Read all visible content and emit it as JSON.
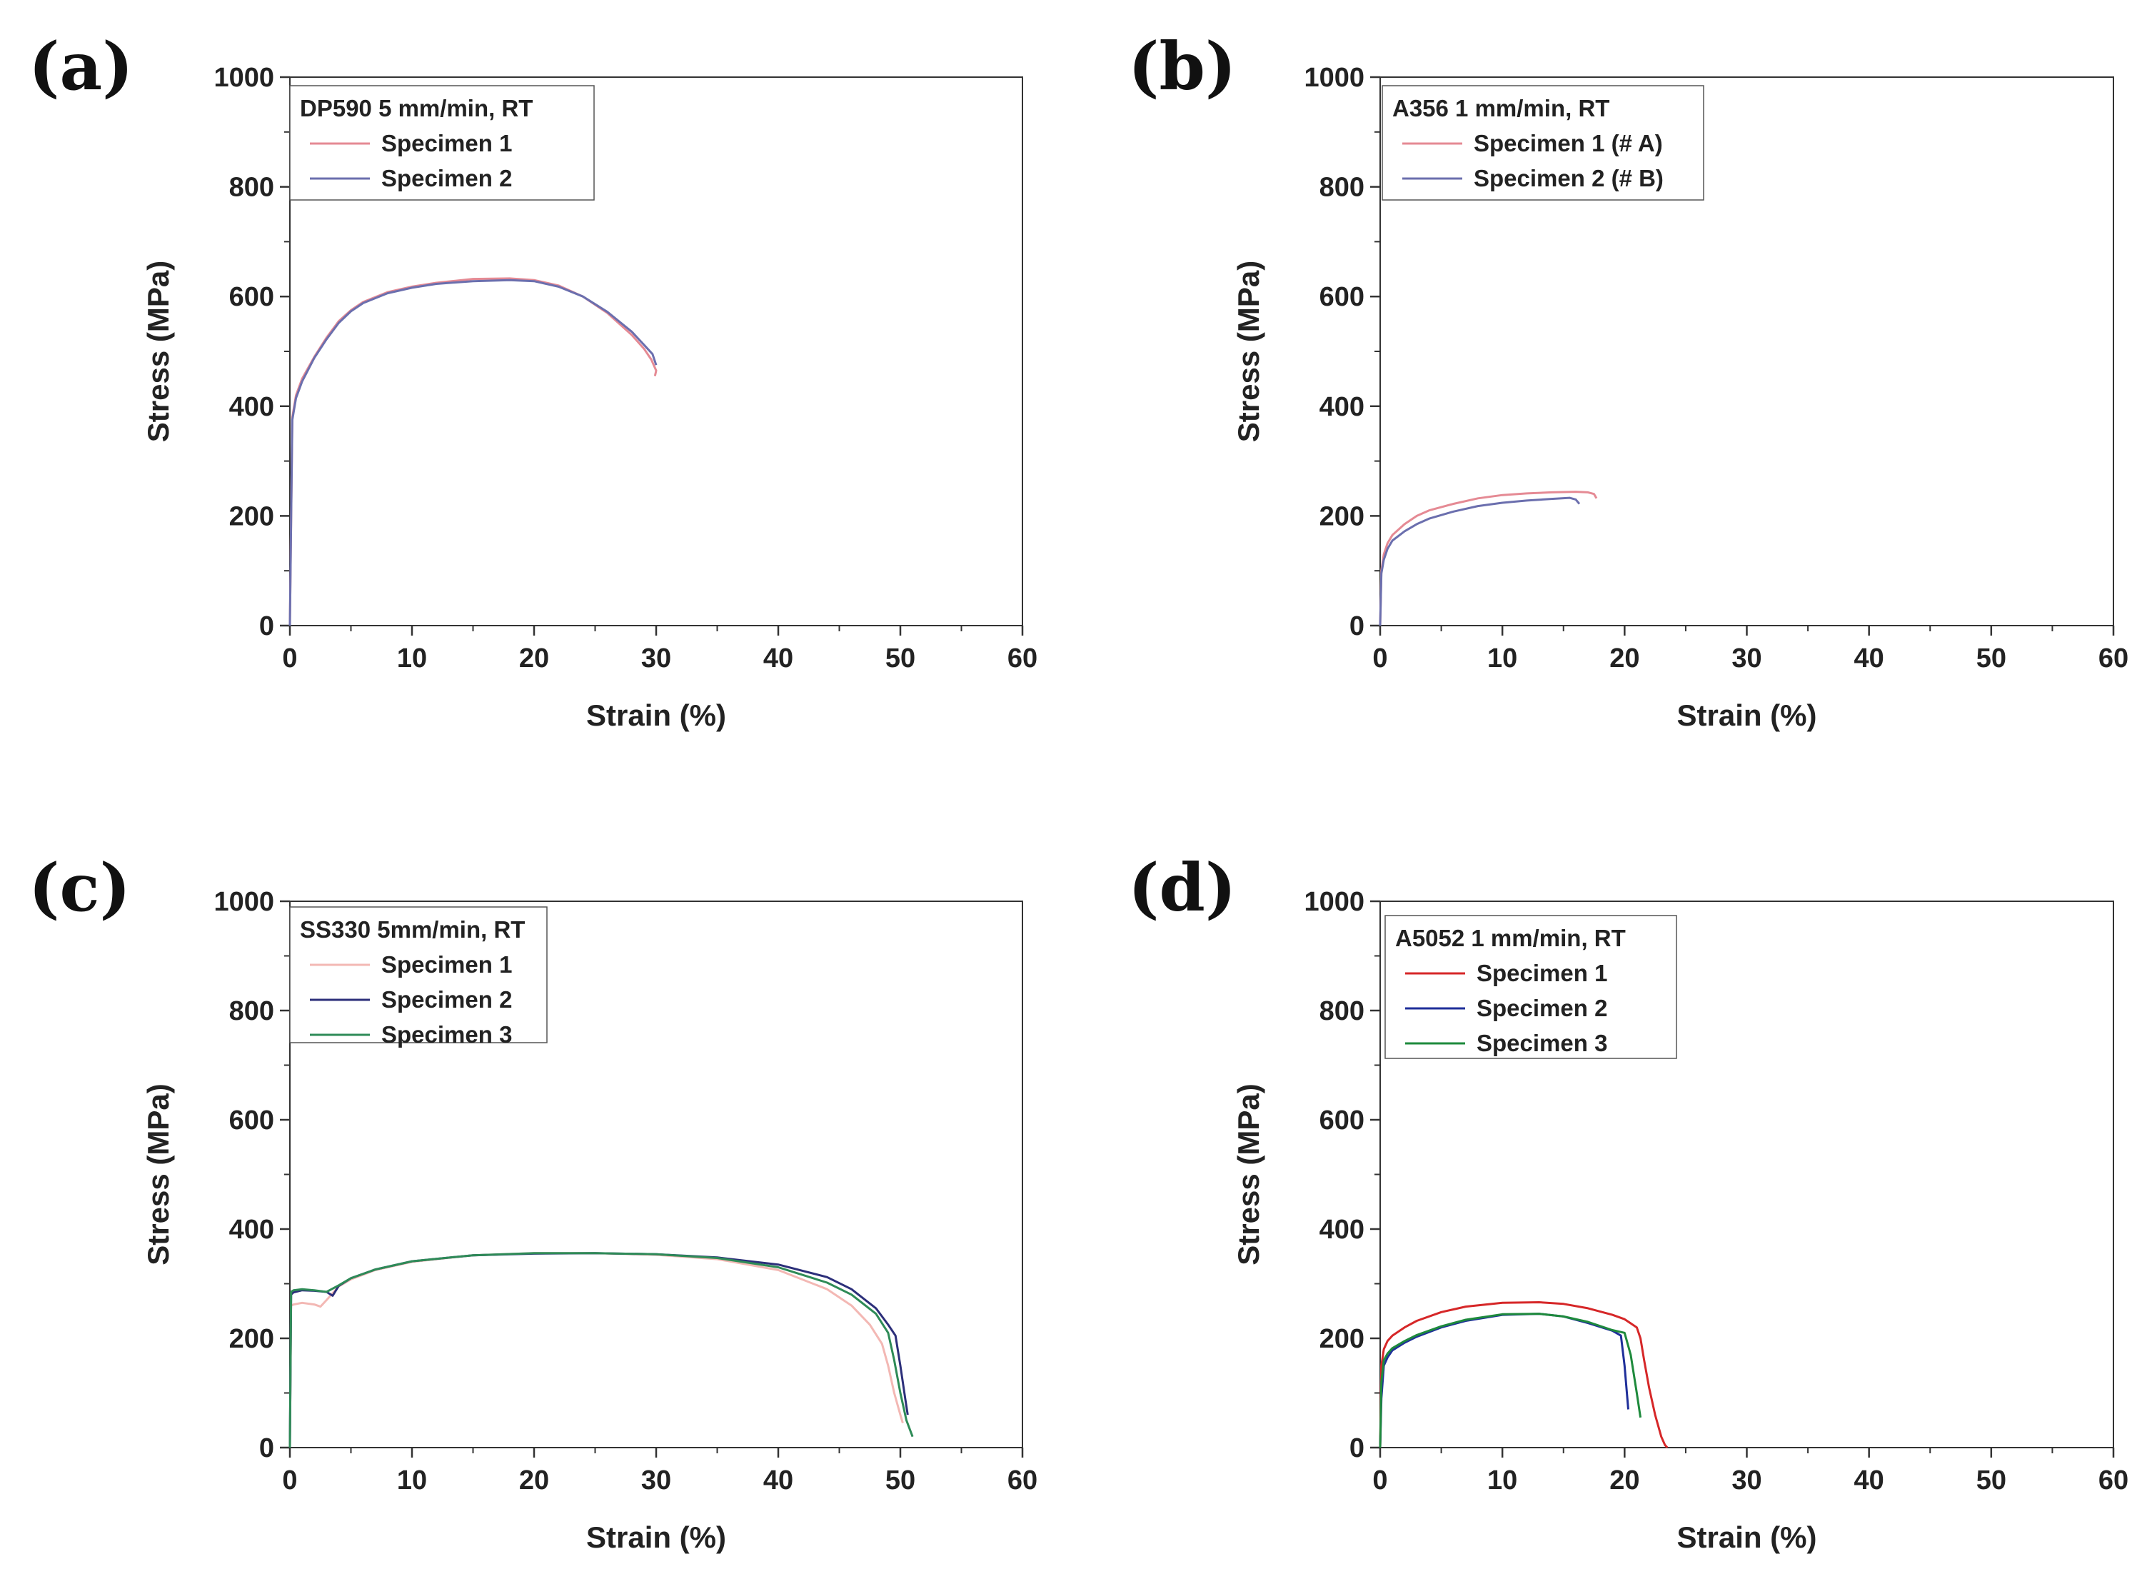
{
  "chart_data": [
    {
      "type": "line",
      "panel_label": "(a)",
      "legend_title": "DP590 5 mm/min, RT",
      "xlabel": "Strain (%)",
      "ylabel": "Stress (MPa)",
      "xlim": [
        0,
        60
      ],
      "ylim": [
        0,
        1000
      ],
      "xticks": [
        0,
        10,
        20,
        30,
        40,
        50,
        60
      ],
      "yticks": [
        0,
        200,
        400,
        600,
        800,
        1000
      ],
      "grid": false,
      "legend_position": "top-left",
      "series": [
        {
          "name": "Specimen 1",
          "color": "#e58a94",
          "x": [
            0,
            0.2,
            0.5,
            1,
            2,
            3,
            4,
            5,
            6,
            8,
            10,
            12,
            15,
            18,
            20,
            22,
            24,
            26,
            28,
            29,
            29.6,
            30,
            29.9
          ],
          "y": [
            0,
            380,
            420,
            450,
            490,
            525,
            555,
            575,
            590,
            608,
            618,
            625,
            632,
            633,
            630,
            620,
            600,
            570,
            530,
            505,
            485,
            465,
            455
          ]
        },
        {
          "name": "Specimen 2",
          "color": "#6b6fae",
          "x": [
            0,
            0.2,
            0.5,
            1,
            2,
            3,
            4,
            5,
            6,
            8,
            10,
            12,
            15,
            18,
            20,
            22,
            24,
            26,
            28,
            29,
            29.7,
            30
          ],
          "y": [
            0,
            375,
            415,
            445,
            488,
            522,
            552,
            573,
            588,
            606,
            616,
            623,
            628,
            630,
            628,
            618,
            600,
            572,
            536,
            512,
            495,
            475
          ]
        }
      ]
    },
    {
      "type": "line",
      "panel_label": "(b)",
      "legend_title": "A356 1 mm/min, RT",
      "xlabel": "Strain (%)",
      "ylabel": "Stress (MPa)",
      "xlim": [
        0,
        60
      ],
      "ylim": [
        0,
        1000
      ],
      "xticks": [
        0,
        10,
        20,
        30,
        40,
        50,
        60
      ],
      "yticks": [
        0,
        200,
        400,
        600,
        800,
        1000
      ],
      "grid": false,
      "legend_position": "top-left",
      "series": [
        {
          "name": "Specimen 1 (# A)",
          "color": "#e58a94",
          "x": [
            0,
            0.1,
            0.3,
            0.6,
            1,
            2,
            3,
            4,
            6,
            8,
            10,
            12,
            14,
            16,
            17,
            17.5,
            17.7
          ],
          "y": [
            0,
            100,
            130,
            150,
            165,
            185,
            200,
            210,
            222,
            232,
            238,
            241,
            243,
            244,
            243,
            240,
            232
          ]
        },
        {
          "name": "Specimen 2 (# B)",
          "color": "#6b6fae",
          "x": [
            0,
            0.1,
            0.3,
            0.6,
            1,
            2,
            3,
            4,
            6,
            8,
            10,
            12,
            14,
            15.5,
            16,
            16.3
          ],
          "y": [
            0,
            95,
            120,
            140,
            155,
            172,
            185,
            195,
            208,
            218,
            224,
            228,
            231,
            233,
            230,
            222
          ]
        }
      ]
    },
    {
      "type": "line",
      "panel_label": "(c)",
      "legend_title": "SS330 5mm/min, RT",
      "xlabel": "Strain (%)",
      "ylabel": "Stress (MPa)",
      "xlim": [
        0,
        60
      ],
      "ylim": [
        0,
        1000
      ],
      "xticks": [
        0,
        10,
        20,
        30,
        40,
        50,
        60
      ],
      "yticks": [
        0,
        200,
        400,
        600,
        800,
        1000
      ],
      "grid": false,
      "legend_position": "top-left",
      "series": [
        {
          "name": "Specimen 1",
          "color": "#f3b8b4",
          "x": [
            0,
            0.1,
            0.3,
            1,
            2,
            2.5,
            3,
            4,
            5,
            7,
            10,
            15,
            20,
            25,
            30,
            35,
            40,
            44,
            46,
            47.5,
            48.5,
            49,
            49.5,
            50,
            50.2
          ],
          "y": [
            0,
            260,
            262,
            265,
            262,
            258,
            270,
            295,
            308,
            325,
            340,
            352,
            356,
            356,
            353,
            345,
            325,
            290,
            260,
            225,
            190,
            150,
            100,
            60,
            45
          ]
        },
        {
          "name": "Specimen 2",
          "color": "#2c2f7a",
          "x": [
            0,
            0.1,
            0.3,
            1,
            2,
            3,
            3.5,
            4,
            5,
            7,
            10,
            15,
            20,
            25,
            30,
            35,
            40,
            44,
            46,
            48,
            49,
            49.6,
            50,
            50.4,
            50.6
          ],
          "y": [
            0,
            280,
            284,
            288,
            287,
            285,
            278,
            296,
            310,
            326,
            341,
            352,
            355,
            356,
            354,
            348,
            335,
            312,
            290,
            255,
            225,
            205,
            150,
            90,
            60
          ]
        },
        {
          "name": "Specimen 3",
          "color": "#2e8b57",
          "x": [
            0,
            0.1,
            0.3,
            1,
            2,
            3,
            4,
            5,
            7,
            10,
            15,
            20,
            25,
            30,
            35,
            40,
            44,
            46,
            48,
            49,
            49.5,
            50,
            50.5,
            51
          ],
          "y": [
            0,
            285,
            288,
            290,
            288,
            285,
            297,
            310,
            326,
            341,
            352,
            356,
            356,
            354,
            347,
            330,
            302,
            280,
            245,
            210,
            160,
            100,
            50,
            20
          ]
        }
      ]
    },
    {
      "type": "line",
      "panel_label": "(d)",
      "legend_title": "A5052 1 mm/min, RT",
      "xlabel": "Strain (%)",
      "ylabel": "Stress (MPa)",
      "xlim": [
        0,
        60
      ],
      "ylim": [
        0,
        1000
      ],
      "xticks": [
        0,
        10,
        20,
        30,
        40,
        50,
        60
      ],
      "yticks": [
        0,
        200,
        400,
        600,
        800,
        1000
      ],
      "grid": false,
      "legend_position": "top-left",
      "series": [
        {
          "name": "Specimen 1",
          "color": "#d62728",
          "x": [
            0,
            0.1,
            0.3,
            0.6,
            1,
            2,
            3,
            5,
            7,
            10,
            13,
            15,
            17,
            19,
            20,
            21,
            21.3,
            21.6,
            22,
            22.5,
            23,
            23.3,
            23.5
          ],
          "y": [
            0,
            150,
            180,
            195,
            205,
            220,
            232,
            248,
            258,
            265,
            266,
            263,
            255,
            243,
            235,
            220,
            200,
            160,
            110,
            60,
            20,
            5,
            0
          ]
        },
        {
          "name": "Specimen 2",
          "color": "#1f2f9a",
          "x": [
            0,
            0.1,
            0.3,
            0.6,
            1,
            2,
            3,
            5,
            7,
            10,
            13,
            15,
            17,
            19,
            19.7,
            20,
            20.3
          ],
          "y": [
            0,
            90,
            150,
            165,
            178,
            192,
            203,
            220,
            232,
            243,
            245,
            240,
            228,
            214,
            205,
            150,
            70
          ]
        },
        {
          "name": "Specimen 3",
          "color": "#1e8a3c",
          "x": [
            0,
            0.1,
            0.3,
            0.6,
            1,
            2,
            3,
            5,
            7,
            10,
            13,
            15,
            17,
            19,
            20,
            20.5,
            21,
            21.3
          ],
          "y": [
            0,
            120,
            160,
            172,
            182,
            195,
            206,
            222,
            234,
            244,
            245,
            240,
            230,
            215,
            210,
            170,
            100,
            55
          ]
        }
      ]
    }
  ]
}
